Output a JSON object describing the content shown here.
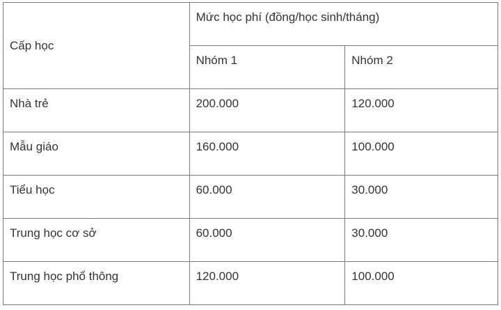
{
  "table": {
    "header": {
      "level": "Cấp học",
      "fee": "Mức học phí (đồng/học sinh/tháng)",
      "group1": "Nhóm 1",
      "group2": "Nhóm 2"
    },
    "rows": [
      {
        "level": "Nhà trẻ",
        "group1": "200.000",
        "group2": "120.000"
      },
      {
        "level": "Mẫu giáo",
        "group1": "160.000",
        "group2": "100.000"
      },
      {
        "level": "Tiểu học",
        "group1": "60.000",
        "group2": "30.000"
      },
      {
        "level": "Trung học cơ sở",
        "group1": "60.000",
        "group2": "30.000"
      },
      {
        "level": "Trung học phổ thông",
        "group1": "120.000",
        "group2": "100.000"
      }
    ]
  }
}
